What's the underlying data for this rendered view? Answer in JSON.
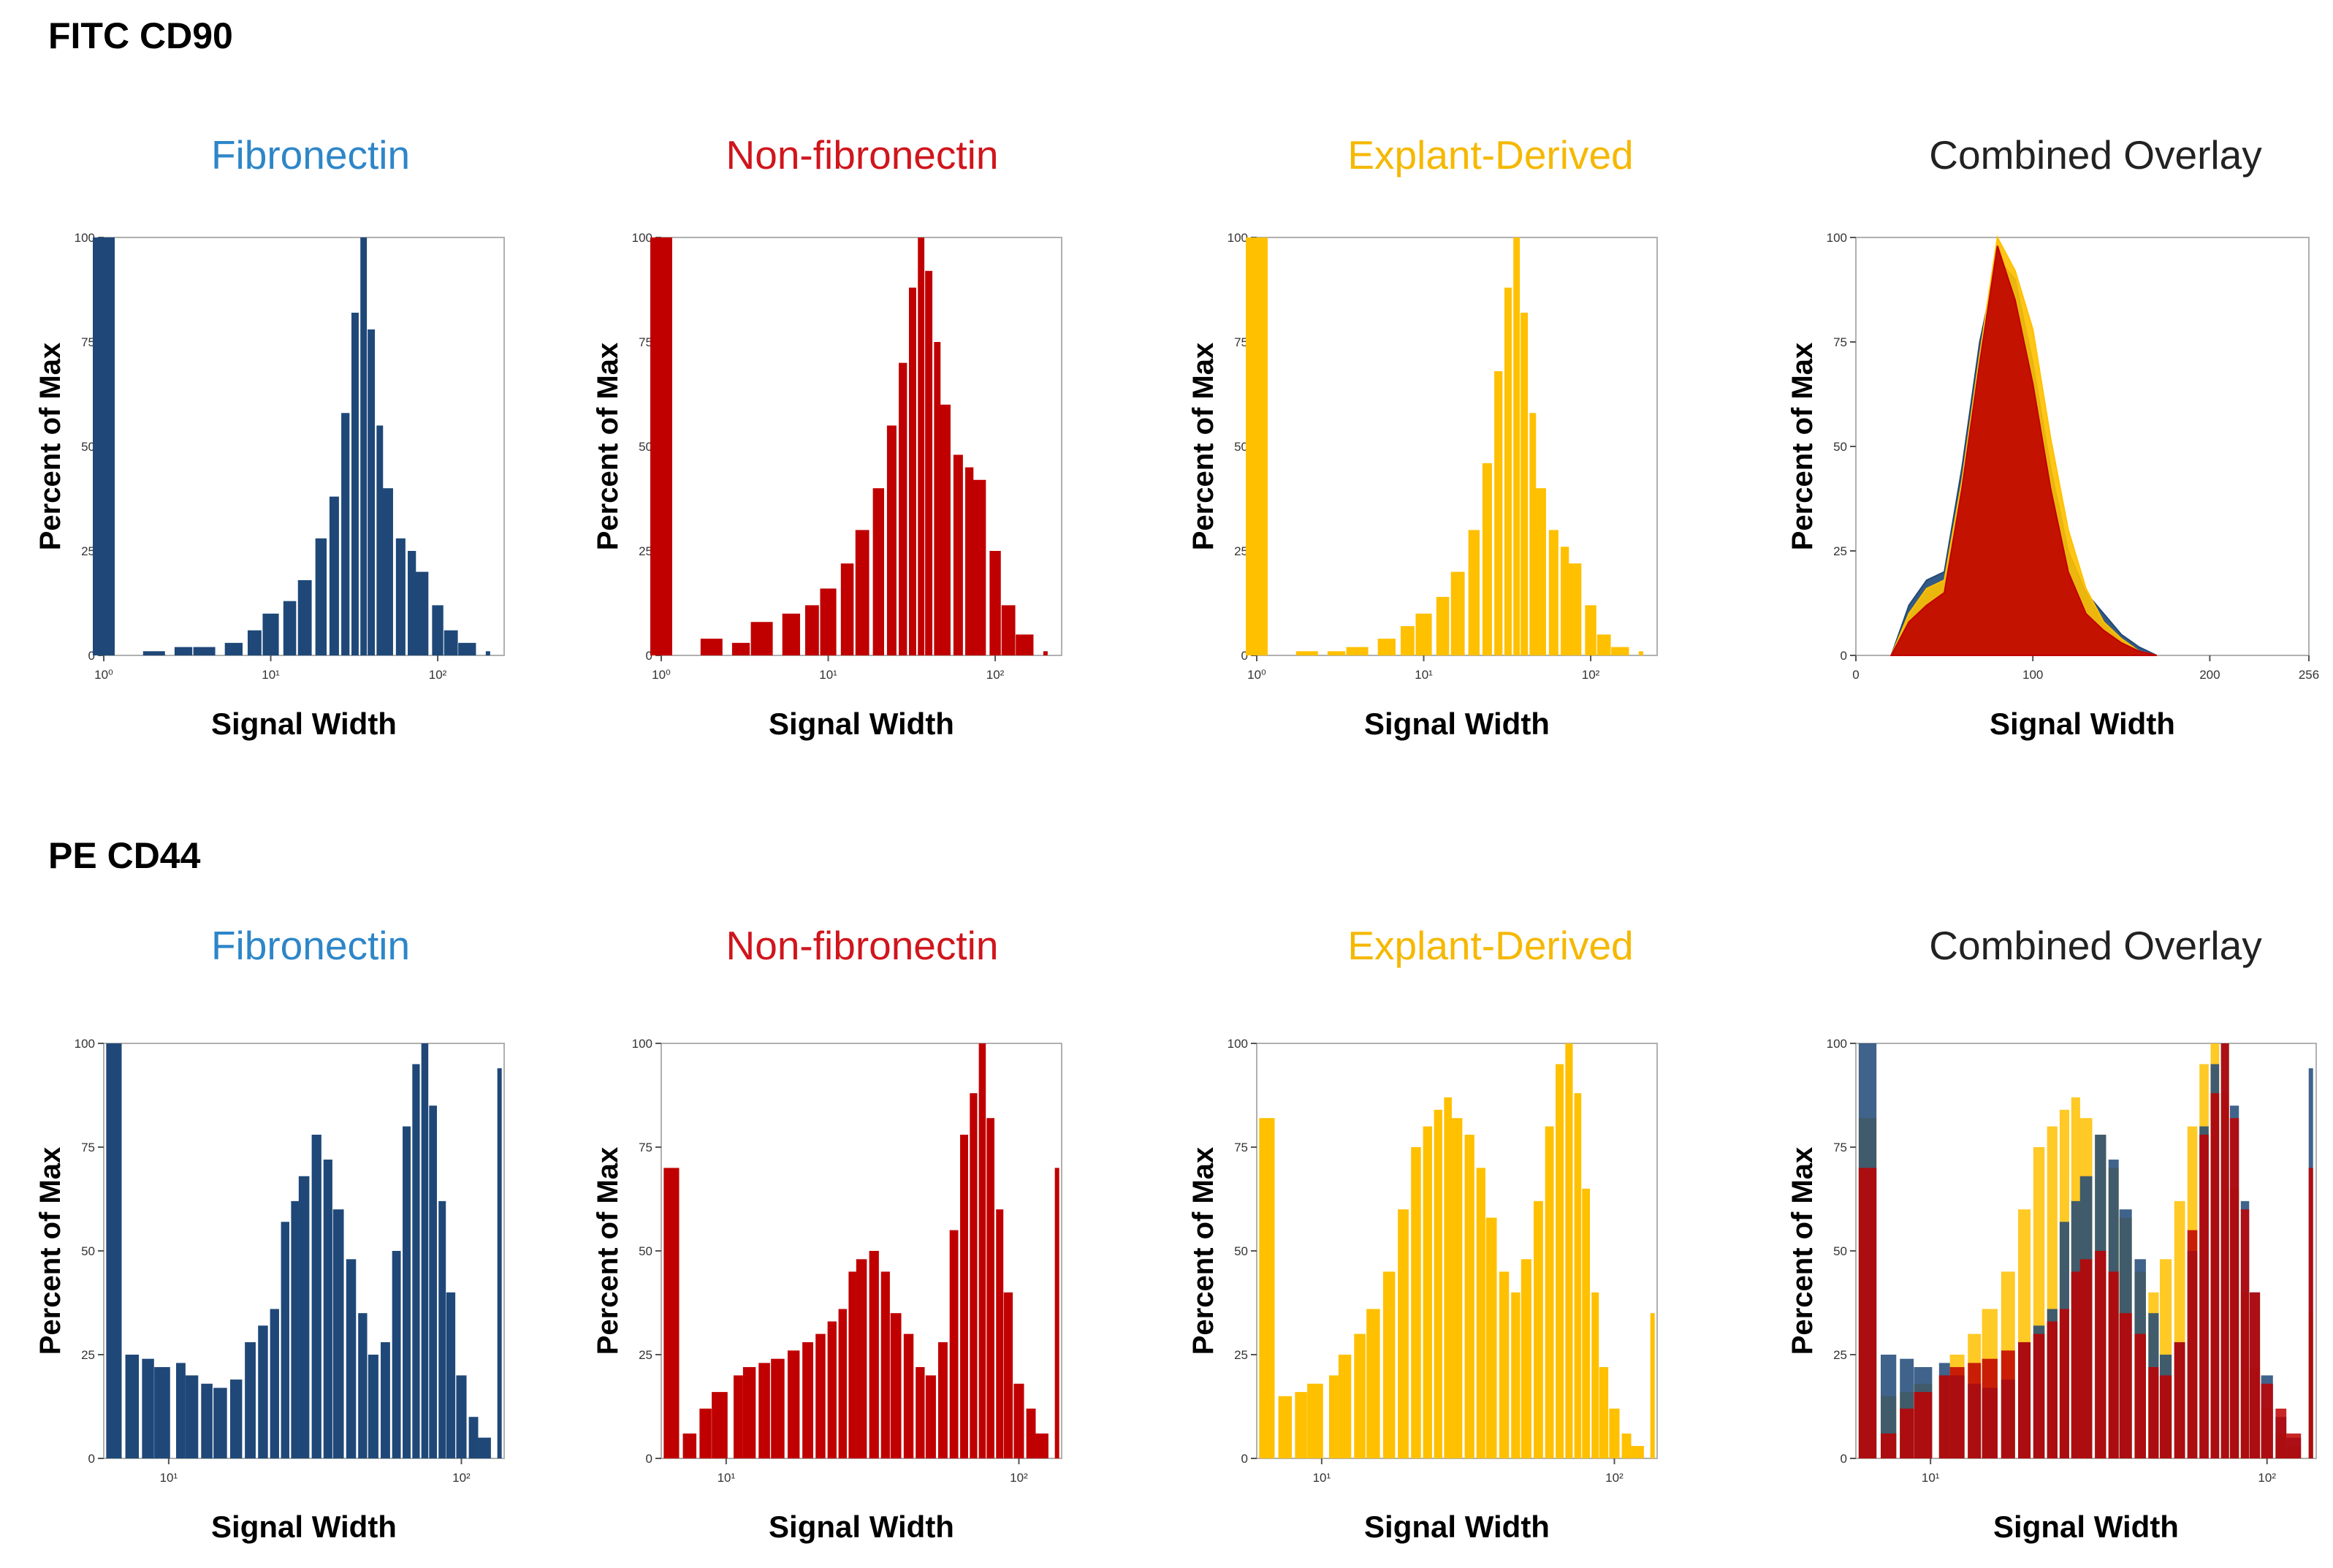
{
  "sections": [
    {
      "title": "FITC CD90",
      "panels": [
        {
          "title": "Fibronectin",
          "title_color": "#2e86c8",
          "x_label": "Signal Width",
          "y_label": "Percent of Max",
          "x_ticks": [
            "10⁰",
            "10¹",
            "10²"
          ],
          "y_ticks": [
            "0",
            "25",
            "50",
            "75",
            "100"
          ]
        },
        {
          "title": "Non-fibronectin",
          "title_color": "#d0151c",
          "x_label": "Signal Width",
          "y_label": "Percent of Max",
          "x_ticks": [
            "10⁰",
            "10¹",
            "10²"
          ],
          "y_ticks": [
            "0",
            "25",
            "50",
            "75",
            "100"
          ]
        },
        {
          "title": "Explant-Derived",
          "title_color": "#f5b800",
          "x_label": "Signal Width",
          "y_label": "Percent of Max",
          "x_ticks": [
            "10⁰",
            "10¹",
            "10²"
          ],
          "y_ticks": [
            "0",
            "25",
            "50",
            "75",
            "100"
          ]
        },
        {
          "title": "Combined Overlay",
          "title_color": "#222222",
          "x_label": "Signal Width",
          "y_label": "Percent of Max",
          "x_ticks": [
            "0",
            "100",
            "200",
            "256"
          ],
          "y_ticks": [
            "0",
            "25",
            "50",
            "75",
            "100"
          ]
        }
      ]
    },
    {
      "title": "PE CD44",
      "panels": [
        {
          "title": "Fibronectin",
          "title_color": "#2e86c8",
          "x_label": "Signal Width",
          "y_label": "Percent of Max",
          "x_ticks": [
            "10¹",
            "10²"
          ],
          "y_ticks": [
            "0",
            "25",
            "50",
            "75",
            "100"
          ]
        },
        {
          "title": "Non-fibronectin",
          "title_color": "#d0151c",
          "x_label": "Signal Width",
          "y_label": "Percent of Max",
          "x_ticks": [
            "10¹",
            "10²"
          ],
          "y_ticks": [
            "0",
            "25",
            "50",
            "75",
            "100"
          ]
        },
        {
          "title": "Explant-Derived",
          "title_color": "#f5b800",
          "x_label": "Signal Width",
          "y_label": "Percent of Max",
          "x_ticks": [
            "10¹",
            "10²"
          ],
          "y_ticks": [
            "0",
            "25",
            "50",
            "75",
            "100"
          ]
        },
        {
          "title": "Combined Overlay",
          "title_color": "#222222",
          "x_label": "Signal Width",
          "y_label": "Percent of Max",
          "x_ticks": [
            "10¹",
            "10²"
          ],
          "y_ticks": [
            "0",
            "25",
            "50",
            "75",
            "100"
          ]
        }
      ]
    }
  ],
  "series_colors": {
    "fibronectin": "#1f4878",
    "non_fibronectin": "#c00000",
    "explant_derived": "#ffc000"
  },
  "chart_data": [
    {
      "type": "bar",
      "panel": "FITC CD90 - Fibronectin",
      "x_scale": "log",
      "xlim": [
        1,
        250
      ],
      "ylim": [
        0,
        100
      ],
      "series": [
        {
          "color": "#1f4878",
          "x": [
            1,
            2,
            3,
            4,
            6,
            8,
            10,
            13,
            16,
            20,
            24,
            28,
            32,
            36,
            40,
            45,
            50,
            60,
            70,
            80,
            100,
            120,
            150,
            200
          ],
          "values": [
            100,
            1,
            2,
            2,
            3,
            6,
            10,
            13,
            18,
            28,
            38,
            58,
            82,
            100,
            78,
            55,
            40,
            28,
            25,
            20,
            12,
            6,
            3,
            1
          ]
        }
      ]
    },
    {
      "type": "bar",
      "panel": "FITC CD90 - Non-fibronectin",
      "x_scale": "log",
      "xlim": [
        1,
        250
      ],
      "ylim": [
        0,
        100
      ],
      "series": [
        {
          "color": "#c00000",
          "x": [
            1,
            2,
            3,
            4,
            6,
            8,
            10,
            13,
            16,
            20,
            24,
            28,
            32,
            36,
            40,
            45,
            50,
            60,
            70,
            80,
            100,
            120,
            150,
            200
          ],
          "values": [
            100,
            4,
            3,
            8,
            10,
            12,
            16,
            22,
            30,
            40,
            55,
            70,
            88,
            100,
            92,
            75,
            60,
            48,
            45,
            42,
            25,
            12,
            5,
            1
          ]
        }
      ]
    },
    {
      "type": "bar",
      "panel": "FITC CD90 - Explant-Derived",
      "x_scale": "log",
      "xlim": [
        1,
        250
      ],
      "ylim": [
        0,
        100
      ],
      "series": [
        {
          "color": "#ffc000",
          "x": [
            1,
            2,
            3,
            4,
            6,
            8,
            10,
            13,
            16,
            20,
            24,
            28,
            32,
            36,
            40,
            45,
            50,
            60,
            70,
            80,
            100,
            120,
            150,
            200
          ],
          "values": [
            100,
            1,
            1,
            2,
            4,
            7,
            10,
            14,
            20,
            30,
            46,
            68,
            88,
            100,
            82,
            58,
            40,
            30,
            26,
            22,
            12,
            5,
            2,
            1
          ]
        }
      ]
    },
    {
      "type": "area",
      "panel": "FITC CD90 - Combined Overlay",
      "x_scale": "linear",
      "xlim": [
        0,
        256
      ],
      "ylim": [
        0,
        100
      ],
      "series": [
        {
          "color": "#1f4878",
          "x": [
            20,
            30,
            40,
            50,
            60,
            70,
            80,
            90,
            100,
            110,
            120,
            130,
            140,
            150,
            160,
            170
          ],
          "values": [
            0,
            12,
            18,
            20,
            45,
            75,
            95,
            90,
            70,
            45,
            25,
            15,
            10,
            5,
            2,
            0
          ]
        },
        {
          "color": "#ffc000",
          "x": [
            20,
            30,
            40,
            50,
            60,
            70,
            80,
            90,
            100,
            110,
            120,
            130,
            140,
            150,
            160,
            170
          ],
          "values": [
            0,
            10,
            16,
            18,
            42,
            72,
            100,
            92,
            78,
            52,
            30,
            16,
            8,
            4,
            1,
            0
          ]
        },
        {
          "color": "#c00000",
          "x": [
            20,
            30,
            40,
            50,
            60,
            70,
            80,
            90,
            100,
            110,
            120,
            130,
            140,
            150,
            160,
            170
          ],
          "values": [
            0,
            8,
            12,
            15,
            40,
            70,
            98,
            85,
            65,
            40,
            20,
            10,
            6,
            3,
            1,
            0
          ]
        }
      ]
    },
    {
      "type": "bar",
      "panel": "PE CD44 - Fibronectin",
      "x_scale": "log",
      "xlim": [
        6,
        140
      ],
      "ylim": [
        0,
        100
      ],
      "series": [
        {
          "color": "#1f4878",
          "x": [
            6.5,
            7.5,
            8.5,
            9.5,
            11,
            12,
            13.5,
            15,
            17,
            19,
            21,
            23,
            25,
            27,
            29,
            32,
            35,
            38,
            42,
            46,
            50,
            55,
            60,
            65,
            70,
            75,
            80,
            86,
            92,
            100,
            110,
            120,
            135
          ],
          "values": [
            100,
            25,
            24,
            22,
            23,
            20,
            18,
            17,
            19,
            28,
            32,
            36,
            57,
            62,
            68,
            78,
            72,
            60,
            48,
            35,
            25,
            28,
            50,
            80,
            95,
            100,
            85,
            62,
            40,
            20,
            10,
            5,
            94
          ]
        }
      ]
    },
    {
      "type": "bar",
      "panel": "PE CD44 - Non-fibronectin",
      "x_scale": "log",
      "xlim": [
        6,
        140
      ],
      "ylim": [
        0,
        100
      ],
      "series": [
        {
          "color": "#c00000",
          "x": [
            6.5,
            7.5,
            8.5,
            9.5,
            11,
            12,
            13.5,
            15,
            17,
            19,
            21,
            23,
            25,
            27,
            29,
            32,
            35,
            38,
            42,
            46,
            50,
            55,
            60,
            65,
            70,
            75,
            80,
            86,
            92,
            100,
            110,
            120,
            135
          ],
          "values": [
            70,
            6,
            12,
            16,
            20,
            22,
            23,
            24,
            26,
            28,
            30,
            33,
            36,
            45,
            48,
            50,
            45,
            35,
            30,
            22,
            20,
            28,
            55,
            78,
            88,
            100,
            82,
            60,
            40,
            18,
            12,
            6,
            70
          ]
        }
      ]
    },
    {
      "type": "bar",
      "panel": "PE CD44 - Explant-Derived",
      "x_scale": "log",
      "xlim": [
        6,
        140
      ],
      "ylim": [
        0,
        100
      ],
      "series": [
        {
          "color": "#ffc000",
          "x": [
            6.5,
            7.5,
            8.5,
            9.5,
            11,
            12,
            13.5,
            15,
            17,
            19,
            21,
            23,
            25,
            27,
            29,
            32,
            35,
            38,
            42,
            46,
            50,
            55,
            60,
            65,
            70,
            75,
            80,
            86,
            92,
            100,
            110,
            120,
            135
          ],
          "values": [
            82,
            15,
            16,
            18,
            20,
            25,
            30,
            36,
            45,
            60,
            75,
            80,
            84,
            87,
            82,
            78,
            70,
            58,
            45,
            40,
            48,
            62,
            80,
            95,
            100,
            88,
            65,
            40,
            22,
            12,
            6,
            3,
            35
          ]
        }
      ]
    },
    {
      "type": "bar",
      "panel": "PE CD44 - Combined Overlay",
      "x_scale": "log",
      "xlim": [
        6,
        140
      ],
      "ylim": [
        0,
        100
      ],
      "series": [
        {
          "color": "#ffc000",
          "x": [
            6.5,
            7.5,
            8.5,
            9.5,
            11,
            12,
            13.5,
            15,
            17,
            19,
            21,
            23,
            25,
            27,
            29,
            32,
            35,
            38,
            42,
            46,
            50,
            55,
            60,
            65,
            70,
            75,
            80,
            86,
            92,
            100,
            110,
            120,
            135
          ],
          "values": [
            82,
            15,
            16,
            18,
            20,
            25,
            30,
            36,
            45,
            60,
            75,
            80,
            84,
            87,
            82,
            78,
            70,
            58,
            45,
            40,
            48,
            62,
            80,
            95,
            100,
            88,
            65,
            40,
            22,
            12,
            6,
            3,
            35
          ]
        },
        {
          "color": "#1f4878",
          "x": [
            6.5,
            7.5,
            8.5,
            9.5,
            11,
            12,
            13.5,
            15,
            17,
            19,
            21,
            23,
            25,
            27,
            29,
            32,
            35,
            38,
            42,
            46,
            50,
            55,
            60,
            65,
            70,
            75,
            80,
            86,
            92,
            100,
            110,
            120,
            135
          ],
          "values": [
            100,
            25,
            24,
            22,
            23,
            20,
            18,
            17,
            19,
            28,
            32,
            36,
            57,
            62,
            68,
            78,
            72,
            60,
            48,
            35,
            25,
            28,
            50,
            80,
            95,
            100,
            85,
            62,
            40,
            20,
            10,
            5,
            94
          ]
        },
        {
          "color": "#c00000",
          "x": [
            6.5,
            7.5,
            8.5,
            9.5,
            11,
            12,
            13.5,
            15,
            17,
            19,
            21,
            23,
            25,
            27,
            29,
            32,
            35,
            38,
            42,
            46,
            50,
            55,
            60,
            65,
            70,
            75,
            80,
            86,
            92,
            100,
            110,
            120,
            135
          ],
          "values": [
            70,
            6,
            12,
            16,
            20,
            22,
            23,
            24,
            26,
            28,
            30,
            33,
            36,
            45,
            48,
            50,
            45,
            35,
            30,
            22,
            20,
            28,
            55,
            78,
            88,
            100,
            82,
            60,
            40,
            18,
            12,
            6,
            70
          ]
        }
      ]
    }
  ]
}
